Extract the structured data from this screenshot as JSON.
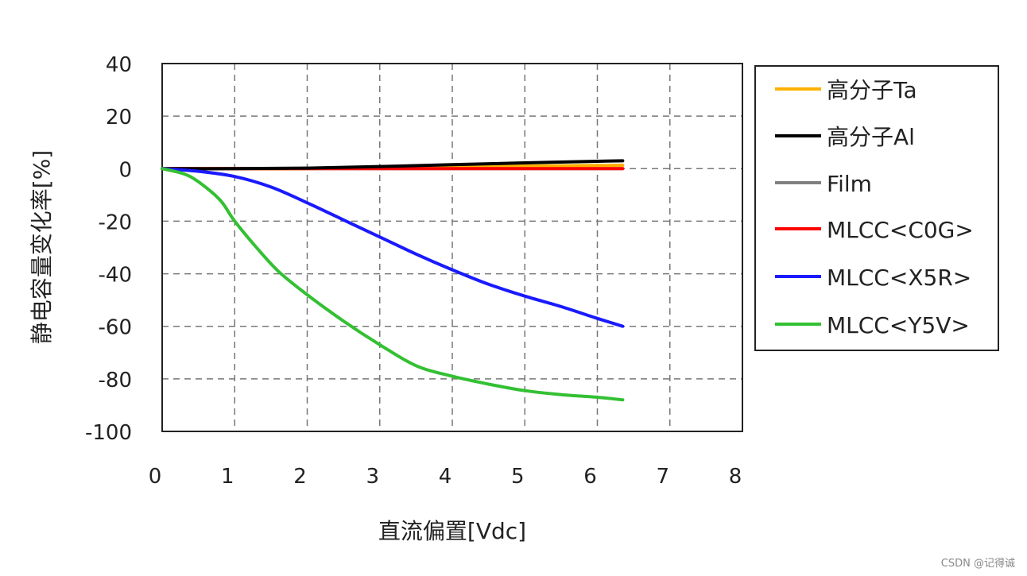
{
  "chart_data": {
    "type": "line",
    "xlabel": "直流偏置[Vdc]",
    "ylabel": "静电容量变化率[%]",
    "xlim": [
      0,
      8
    ],
    "ylim": [
      -100,
      40
    ],
    "xticks": [
      "0",
      "1",
      "2",
      "3",
      "4",
      "5",
      "6",
      "7",
      "8"
    ],
    "yticks": [
      "40",
      "20",
      "0",
      "-20",
      "-40",
      "-60",
      "-80",
      "-100"
    ],
    "grid": true,
    "legend_position": "right",
    "series": [
      {
        "name": "高分子Ta",
        "color": "#ffb000",
        "x": [
          0,
          1,
          2,
          3,
          4,
          5,
          6,
          6.35
        ],
        "y": [
          0,
          0,
          0,
          0.5,
          0.8,
          1.0,
          1.2,
          1.3
        ]
      },
      {
        "name": "高分子Al",
        "color": "#000000",
        "x": [
          0,
          1,
          2,
          3,
          4,
          5,
          6,
          6.35
        ],
        "y": [
          0,
          0,
          0.2,
          0.8,
          1.5,
          2.2,
          2.8,
          3.0
        ]
      },
      {
        "name": "Film",
        "color": "#808080",
        "x": [
          0,
          1,
          2,
          3,
          4,
          5,
          6,
          6.35
        ],
        "y": [
          0,
          0,
          0,
          0,
          0,
          0,
          0,
          0
        ]
      },
      {
        "name": "MLCC<C0G>",
        "color": "#ff0000",
        "x": [
          0,
          1,
          2,
          3,
          4,
          5,
          6,
          6.35
        ],
        "y": [
          0,
          0,
          0,
          0,
          0,
          0,
          0,
          0
        ]
      },
      {
        "name": "MLCC<X5R>",
        "color": "#1a1aff",
        "x": [
          0,
          0.5,
          1,
          1.5,
          2,
          2.5,
          3,
          3.5,
          4,
          4.5,
          5,
          5.5,
          6,
          6.35
        ],
        "y": [
          0,
          -1,
          -3,
          -7,
          -13,
          -19.5,
          -26,
          -32.5,
          -38.5,
          -44,
          -48.5,
          -52.5,
          -57,
          -60
        ]
      },
      {
        "name": "MLCC<Y5V>",
        "color": "#33c033",
        "x": [
          0,
          0.3,
          0.5,
          0.8,
          1,
          1.3,
          1.6,
          2,
          2.5,
          3,
          3.5,
          4,
          4.5,
          5,
          5.5,
          6,
          6.35
        ],
        "y": [
          0,
          -2,
          -5,
          -12,
          -20,
          -30,
          -39,
          -48,
          -58,
          -67,
          -75,
          -79,
          -82,
          -84.5,
          -86,
          -87,
          -88
        ]
      }
    ]
  },
  "watermark": "CSDN @记得诚"
}
